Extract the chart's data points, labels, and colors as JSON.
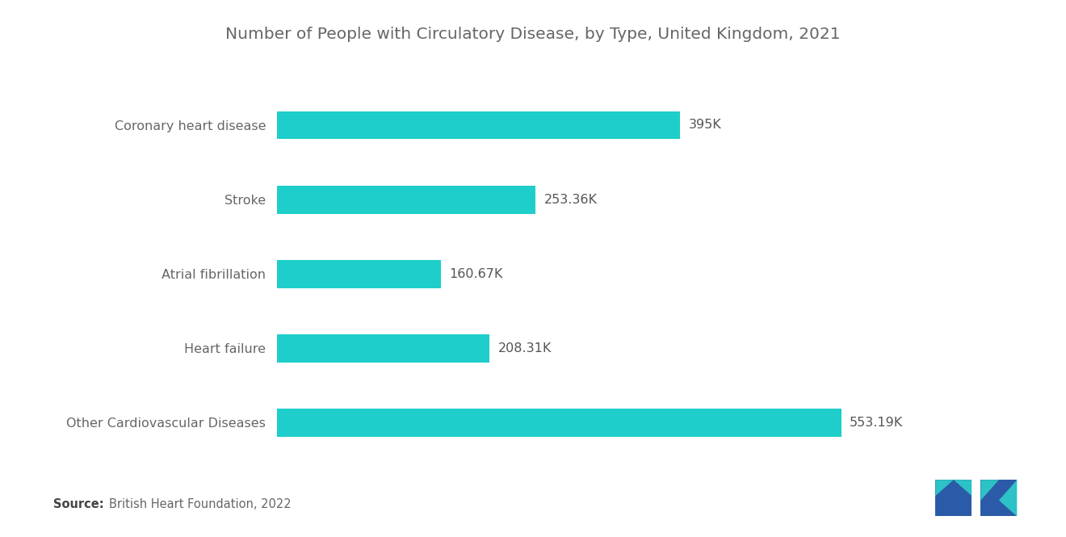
{
  "title": "Number of People with Circulatory Disease, by Type, United Kingdom, 2021",
  "categories": [
    "Other Cardiovascular Diseases",
    "Heart failure",
    "Atrial fibrillation",
    "Stroke",
    "Coronary heart disease"
  ],
  "values": [
    553.19,
    208.31,
    160.67,
    253.36,
    395
  ],
  "labels": [
    "553.19K",
    "208.31K",
    "160.67K",
    "253.36K",
    "395K"
  ],
  "bar_color": "#1ECECA",
  "background_color": "#ffffff",
  "title_color": "#666666",
  "label_color": "#666666",
  "value_label_color": "#555555",
  "source_bold": "Source:",
  "source_text": "  British Heart Foundation, 2022",
  "title_fontsize": 14.5,
  "category_fontsize": 11.5,
  "value_fontsize": 11.5,
  "source_fontsize": 10.5,
  "bar_height": 0.38,
  "xlim": [
    0,
    700
  ],
  "logo_blue": "#2B5BA8",
  "logo_teal": "#2ECECA"
}
